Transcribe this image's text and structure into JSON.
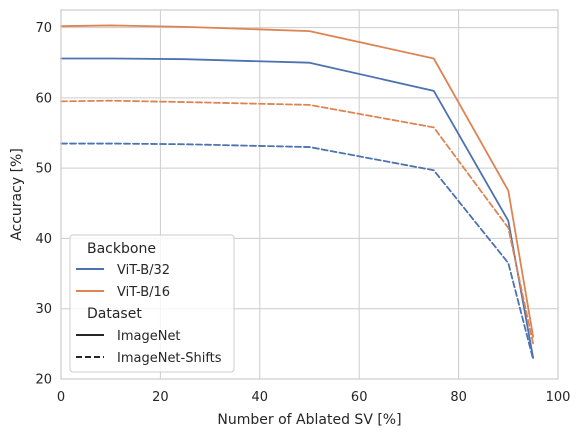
{
  "chart_data": {
    "type": "line",
    "xlabel": "Number of Ablated SV [%]",
    "ylabel": "Accuracy [%]",
    "xlim": [
      0,
      100
    ],
    "ylim": [
      20,
      72.5
    ],
    "x_ticks": [
      "0",
      "20",
      "40",
      "60",
      "80",
      "100"
    ],
    "y_ticks": [
      "20",
      "30",
      "40",
      "50",
      "60",
      "70"
    ],
    "grid": true,
    "series": [
      {
        "backbone": "ViT-B/32",
        "dataset": "ImageNet",
        "color": "#4c72b0",
        "style": "solid",
        "x": [
          0,
          10,
          25,
          50,
          75,
          90,
          95
        ],
        "y": [
          65.6,
          65.6,
          65.5,
          65.0,
          61.0,
          42.5,
          23.0
        ]
      },
      {
        "backbone": "ViT-B/32",
        "dataset": "ImageNet-Shifts",
        "color": "#4c72b0",
        "style": "dashed",
        "x": [
          0,
          10,
          25,
          50,
          75,
          90,
          95
        ],
        "y": [
          53.5,
          53.5,
          53.4,
          53.0,
          49.7,
          36.5,
          22.8
        ]
      },
      {
        "backbone": "ViT-B/16",
        "dataset": "ImageNet",
        "color": "#dd8452",
        "style": "solid",
        "x": [
          0,
          10,
          25,
          50,
          75,
          90,
          95
        ],
        "y": [
          70.2,
          70.3,
          70.1,
          69.5,
          65.6,
          46.8,
          26.0
        ]
      },
      {
        "backbone": "ViT-B/16",
        "dataset": "ImageNet-Shifts",
        "color": "#dd8452",
        "style": "dashed",
        "x": [
          0,
          10,
          25,
          50,
          75,
          90,
          95
        ],
        "y": [
          59.5,
          59.6,
          59.4,
          59.0,
          55.8,
          41.5,
          25.0
        ]
      }
    ],
    "legend": {
      "placement": "lower-left",
      "hue_title": "Backbone",
      "hue_entries": [
        {
          "label": "ViT-B/32",
          "color": "#4c72b0"
        },
        {
          "label": "ViT-B/16",
          "color": "#dd8452"
        }
      ],
      "style_title": "Dataset",
      "style_entries": [
        {
          "label": "ImageNet",
          "style": "solid"
        },
        {
          "label": "ImageNet-Shifts",
          "style": "dashed"
        }
      ]
    }
  }
}
